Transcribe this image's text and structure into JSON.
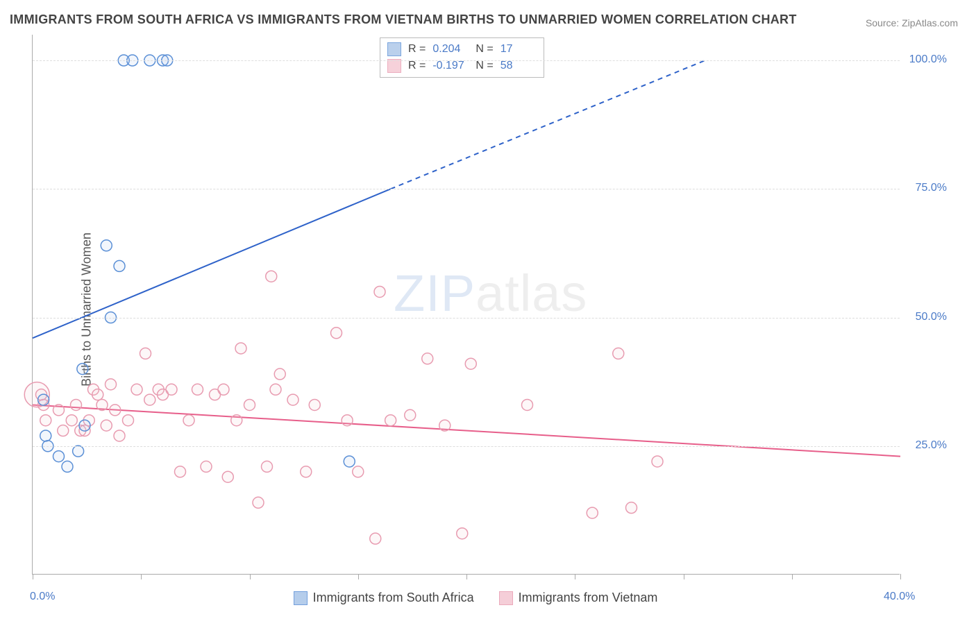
{
  "title": "IMMIGRANTS FROM SOUTH AFRICA VS IMMIGRANTS FROM VIETNAM BIRTHS TO UNMARRIED WOMEN CORRELATION CHART",
  "source": "Source: ZipAtlas.com",
  "ylabel": "Births to Unmarried Women",
  "watermark_a": "ZIP",
  "watermark_b": "atlas",
  "chart": {
    "type": "scatter-with-regression",
    "background_color": "#ffffff",
    "grid_color": "#dddddd",
    "axis_color": "#aaaaaa",
    "tick_label_color": "#4a7ac7",
    "xlim": [
      0,
      40
    ],
    "ylim": [
      0,
      105
    ],
    "x_ticks": [
      0,
      5,
      10,
      15,
      20,
      25,
      30,
      35,
      40
    ],
    "x_tick_labels": {
      "0": "0.0%",
      "40": "40.0%"
    },
    "y_grid": [
      25,
      50,
      75,
      100
    ],
    "y_tick_labels": {
      "25": "25.0%",
      "50": "50.0%",
      "75": "75.0%",
      "100": "100.0%"
    },
    "marker_radius": 8,
    "marker_stroke_width": 1.5,
    "marker_fill_opacity": 0.15,
    "line_width": 2
  },
  "series": {
    "sa": {
      "label": "Immigrants from South Africa",
      "color_stroke": "#5a8fd6",
      "color_fill": "#a9c5e8",
      "line_color": "#2e62c9",
      "reg_start": [
        0,
        46
      ],
      "reg_solid_end": [
        16.5,
        75
      ],
      "reg_dash_end": [
        31,
        100
      ],
      "points": [
        [
          0.5,
          34
        ],
        [
          0.6,
          27
        ],
        [
          0.7,
          25
        ],
        [
          1.2,
          23
        ],
        [
          1.6,
          21
        ],
        [
          2.1,
          24
        ],
        [
          2.3,
          40
        ],
        [
          2.4,
          29
        ],
        [
          3.4,
          64
        ],
        [
          3.6,
          50
        ],
        [
          4.0,
          60
        ],
        [
          4.2,
          100
        ],
        [
          4.6,
          100
        ],
        [
          5.4,
          100
        ],
        [
          6.0,
          100
        ],
        [
          6.2,
          100
        ],
        [
          14.6,
          22
        ]
      ]
    },
    "vn": {
      "label": "Immigrants from Vietnam",
      "color_stroke": "#e89bb0",
      "color_fill": "#f4c6d2",
      "line_color": "#e75e8a",
      "reg_start": [
        0,
        33
      ],
      "reg_end": [
        40,
        23
      ],
      "points": [
        [
          0.4,
          35
        ],
        [
          0.5,
          33
        ],
        [
          0.6,
          30
        ],
        [
          1.2,
          32
        ],
        [
          1.4,
          28
        ],
        [
          1.8,
          30
        ],
        [
          2.0,
          33
        ],
        [
          2.2,
          28
        ],
        [
          2.4,
          28
        ],
        [
          2.6,
          30
        ],
        [
          2.8,
          36
        ],
        [
          3.0,
          35
        ],
        [
          3.2,
          33
        ],
        [
          3.4,
          29
        ],
        [
          3.6,
          37
        ],
        [
          3.8,
          32
        ],
        [
          4.0,
          27
        ],
        [
          4.4,
          30
        ],
        [
          4.8,
          36
        ],
        [
          5.2,
          43
        ],
        [
          5.4,
          34
        ],
        [
          5.8,
          36
        ],
        [
          6.0,
          35
        ],
        [
          6.4,
          36
        ],
        [
          6.8,
          20
        ],
        [
          7.2,
          30
        ],
        [
          7.6,
          36
        ],
        [
          8.0,
          21
        ],
        [
          8.4,
          35
        ],
        [
          8.8,
          36
        ],
        [
          9.0,
          19
        ],
        [
          9.4,
          30
        ],
        [
          9.6,
          44
        ],
        [
          10.0,
          33
        ],
        [
          10.4,
          14
        ],
        [
          10.8,
          21
        ],
        [
          11.0,
          58
        ],
        [
          11.2,
          36
        ],
        [
          11.4,
          39
        ],
        [
          12.0,
          34
        ],
        [
          12.6,
          20
        ],
        [
          13.0,
          33
        ],
        [
          14.0,
          47
        ],
        [
          14.5,
          30
        ],
        [
          15.0,
          20
        ],
        [
          15.8,
          7
        ],
        [
          16.0,
          55
        ],
        [
          16.5,
          30
        ],
        [
          17.4,
          31
        ],
        [
          18.2,
          42
        ],
        [
          19.0,
          29
        ],
        [
          19.8,
          8
        ],
        [
          20.2,
          41
        ],
        [
          22.8,
          33
        ],
        [
          25.8,
          12
        ],
        [
          27.0,
          43
        ],
        [
          27.6,
          13
        ],
        [
          28.8,
          22
        ]
      ]
    }
  },
  "stats": {
    "rows": [
      {
        "swatch": "sa",
        "R": "0.204",
        "N": "17"
      },
      {
        "swatch": "vn",
        "R": "-0.197",
        "N": "58"
      }
    ],
    "label_R": "R  = ",
    "label_N": "N  = "
  },
  "legend": {
    "items": [
      {
        "series": "sa"
      },
      {
        "series": "vn"
      }
    ]
  }
}
